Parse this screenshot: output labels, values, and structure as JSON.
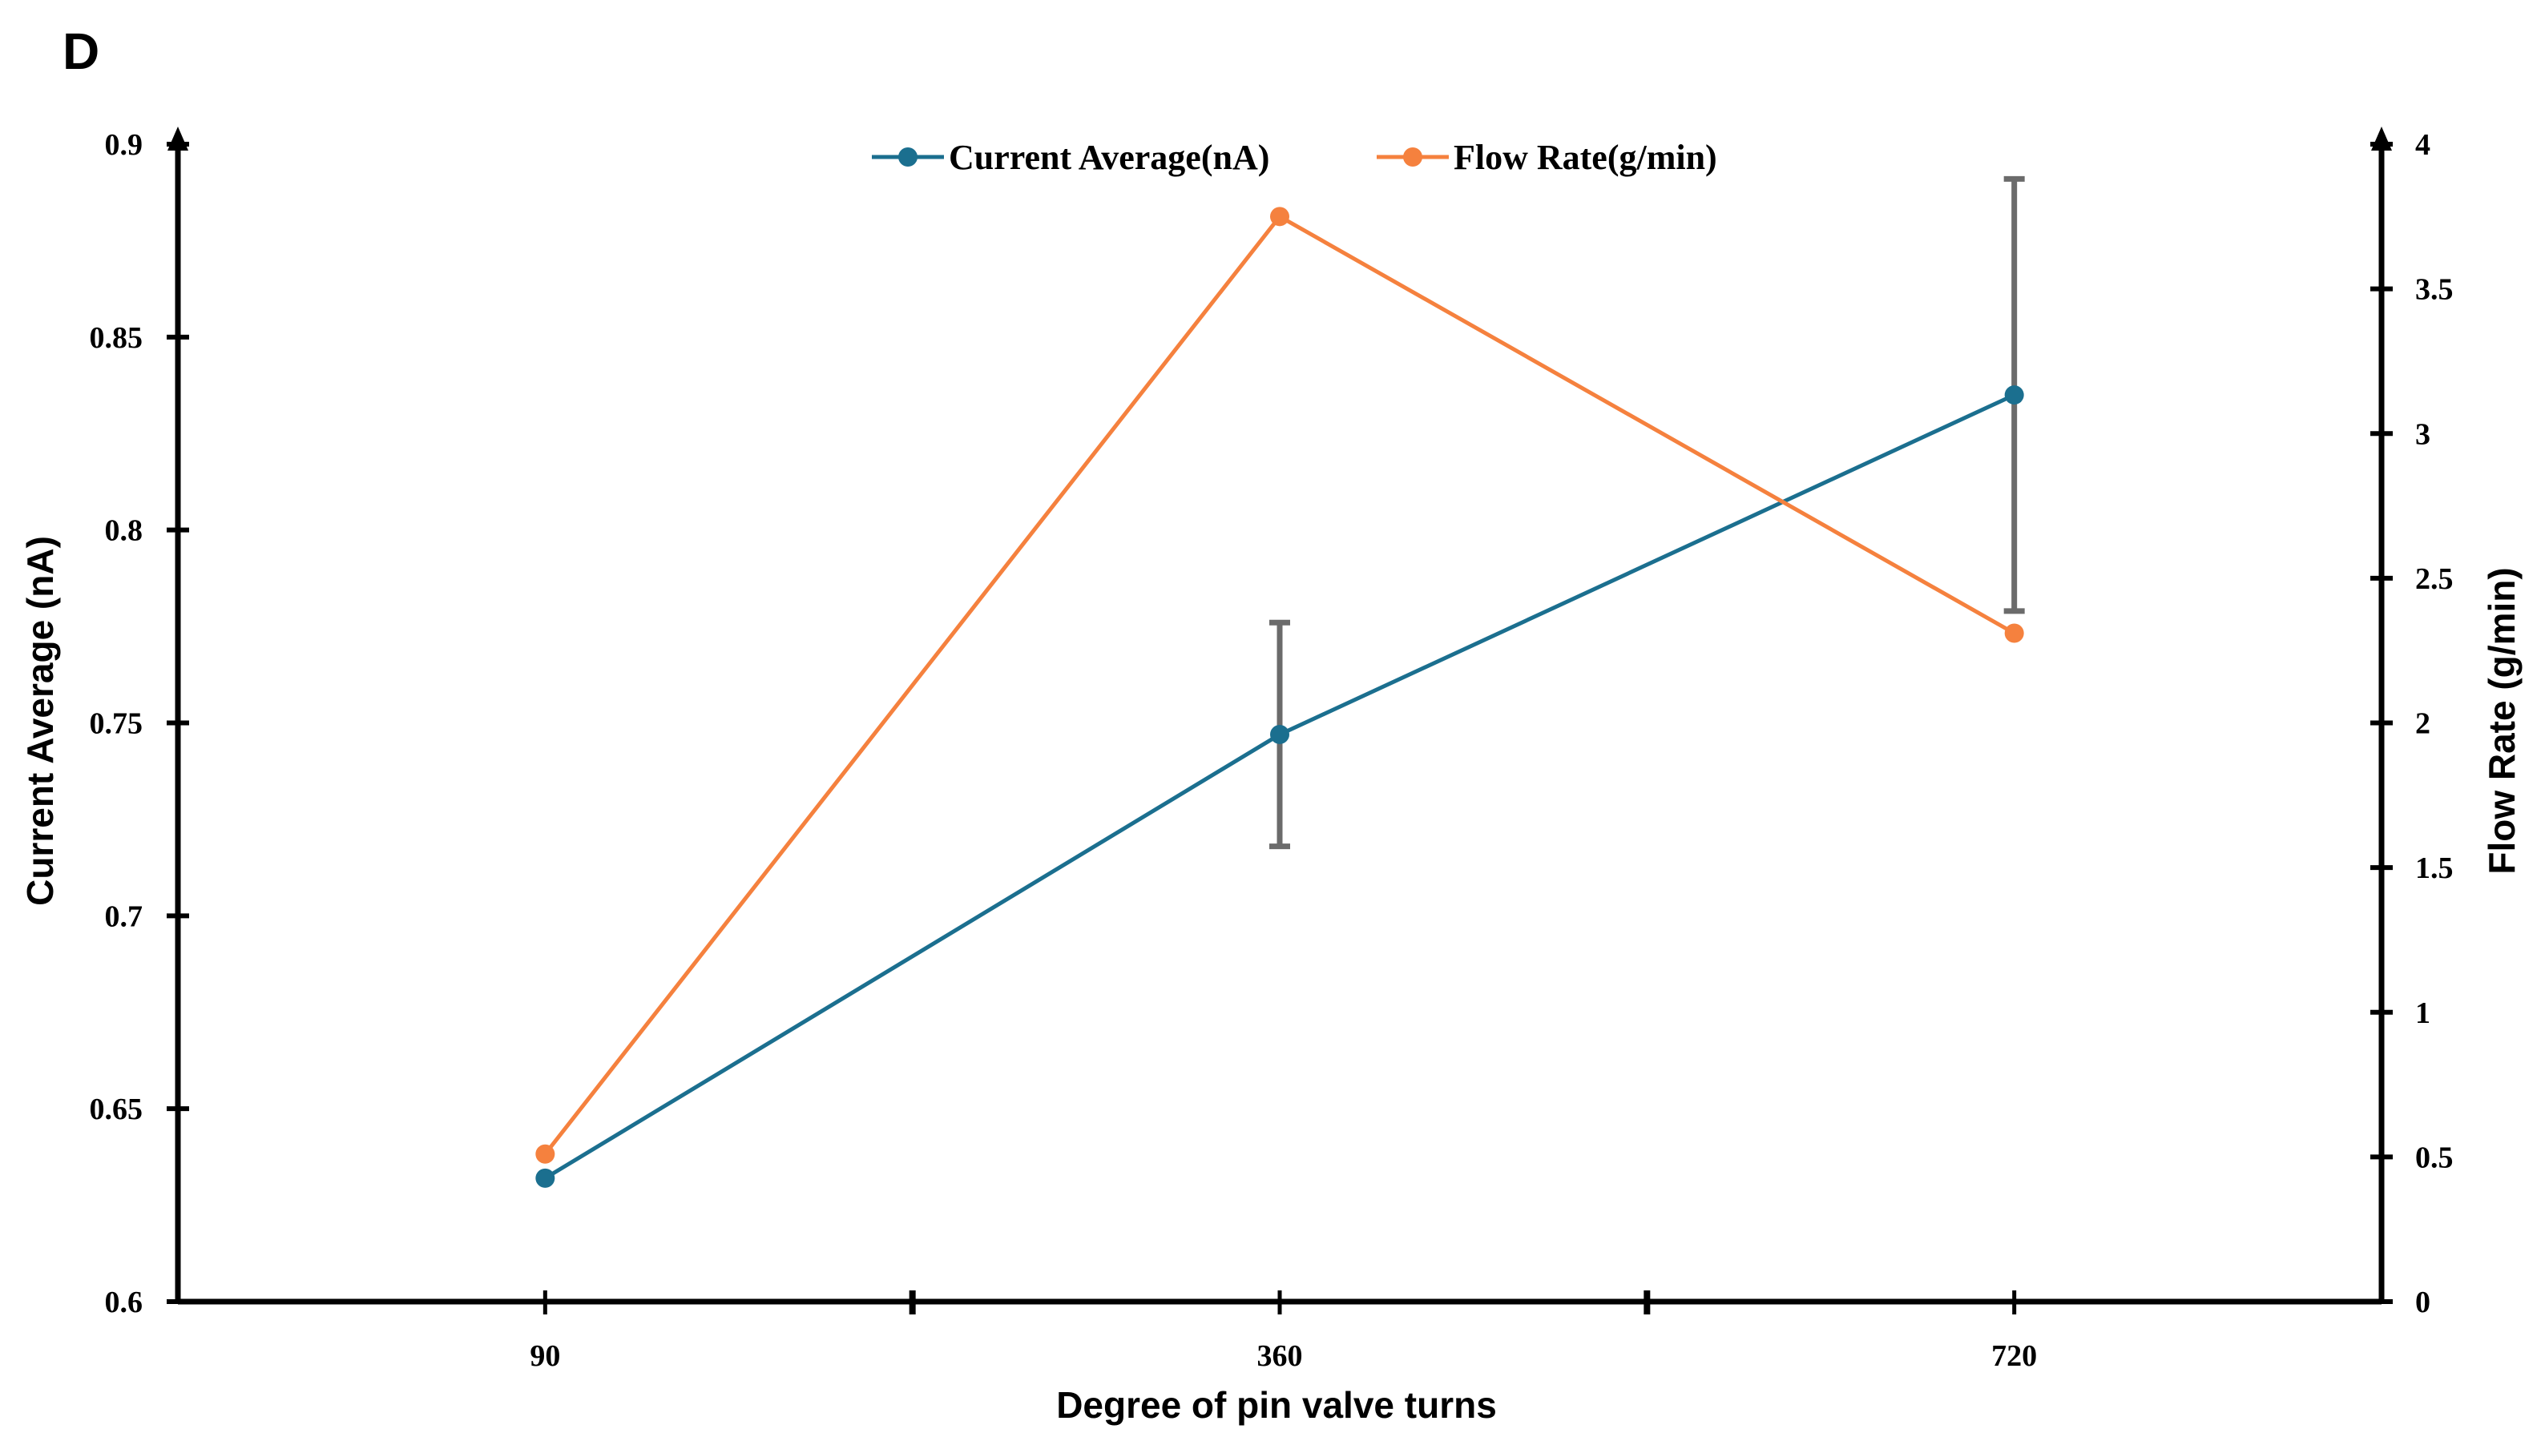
{
  "panel_label": "D",
  "chart_data": {
    "type": "line",
    "title": "",
    "xlabel": "Degree of pin valve turns",
    "ylabel": "Current Average (nA)",
    "y2label": "Flow Rate (g/min)",
    "categories": [
      "90",
      "360",
      "720"
    ],
    "ylim": [
      0.6,
      0.9
    ],
    "y2lim": [
      0,
      4
    ],
    "yticks": [
      0.6,
      0.65,
      0.7,
      0.75,
      0.8,
      0.85,
      0.9
    ],
    "y2ticks": [
      0,
      0.5,
      1,
      1.5,
      2,
      2.5,
      3,
      3.5,
      4
    ],
    "legend_position": "top-center",
    "grid": false,
    "series": [
      {
        "name": "Current Average(nA)",
        "axis": "left",
        "color": "#1b6f8f",
        "values": [
          0.632,
          0.747,
          0.835
        ],
        "error": [
          null,
          0.029,
          0.056
        ]
      },
      {
        "name": "Flow Rate(g/min)",
        "axis": "right",
        "color": "#f5813e",
        "values": [
          0.51,
          3.75,
          2.31
        ]
      }
    ],
    "error_bar_color": "#6b6b6b"
  }
}
